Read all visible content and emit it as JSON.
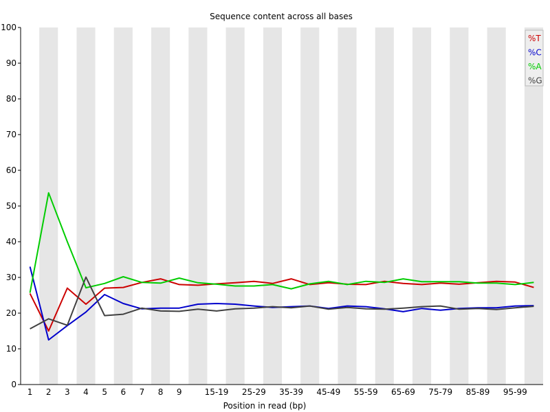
{
  "chart_data": {
    "type": "line",
    "title": "Sequence content across all bases",
    "xlabel": "Position in read (bp)",
    "ylabel": "",
    "ylim": [
      0,
      100
    ],
    "yticks": [
      "0",
      "10",
      "20",
      "30",
      "40",
      "50",
      "60",
      "70",
      "80",
      "90",
      "100"
    ],
    "categories": [
      "1",
      "2",
      "3",
      "4",
      "5",
      "6",
      "7",
      "8",
      "9",
      "10-14",
      "15-19",
      "20-24",
      "25-29",
      "30-34",
      "35-39",
      "40-44",
      "45-49",
      "50-54",
      "55-59",
      "60-64",
      "65-69",
      "70-74",
      "75-79",
      "80-84",
      "85-89",
      "90-94",
      "95-99",
      "100-101"
    ],
    "tick_labels": [
      "1",
      "2",
      "3",
      "4",
      "5",
      "6",
      "7",
      "8",
      "9",
      "",
      "15-19",
      "",
      "25-29",
      "",
      "35-39",
      "",
      "45-49",
      "",
      "55-59",
      "",
      "65-69",
      "",
      "75-79",
      "",
      "85-89",
      "",
      "95-99",
      ""
    ],
    "grid": "alternating vertical bands",
    "legend_position": "top-right",
    "series": [
      {
        "name": "%T",
        "color": "#cc0000",
        "values": [
          25.5,
          15.0,
          27.0,
          22.5,
          27.0,
          27.2,
          28.6,
          29.6,
          28.0,
          27.8,
          28.2,
          28.5,
          28.9,
          28.3,
          29.6,
          28.0,
          28.5,
          28.1,
          28.0,
          28.9,
          28.3,
          28.0,
          28.4,
          28.1,
          28.5,
          28.9,
          28.7,
          27.2
        ]
      },
      {
        "name": "%C",
        "color": "#0000cc",
        "values": [
          33.0,
          12.5,
          16.5,
          20.3,
          25.2,
          22.7,
          21.2,
          21.4,
          21.4,
          22.5,
          22.7,
          22.5,
          22.0,
          21.6,
          21.8,
          22.0,
          21.3,
          22.0,
          21.8,
          21.2,
          20.4,
          21.3,
          20.8,
          21.3,
          21.5,
          21.5,
          22.0,
          22.1
        ]
      },
      {
        "name": "%A",
        "color": "#00cc00",
        "values": [
          25.7,
          53.7,
          40.0,
          27.1,
          28.3,
          30.2,
          28.6,
          28.4,
          29.8,
          28.5,
          28.1,
          27.6,
          27.6,
          28.0,
          26.8,
          28.2,
          28.9,
          28.0,
          28.9,
          28.6,
          29.6,
          28.8,
          28.8,
          28.8,
          28.4,
          28.4,
          28.0,
          28.6
        ]
      },
      {
        "name": "%G",
        "color": "#404040",
        "values": [
          15.6,
          18.4,
          16.6,
          30.1,
          19.3,
          19.7,
          21.4,
          20.6,
          20.5,
          21.1,
          20.6,
          21.2,
          21.4,
          21.8,
          21.5,
          22.0,
          21.1,
          21.6,
          21.2,
          21.1,
          21.4,
          21.8,
          22.0,
          21.1,
          21.3,
          21.0,
          21.5,
          21.9
        ]
      }
    ]
  }
}
